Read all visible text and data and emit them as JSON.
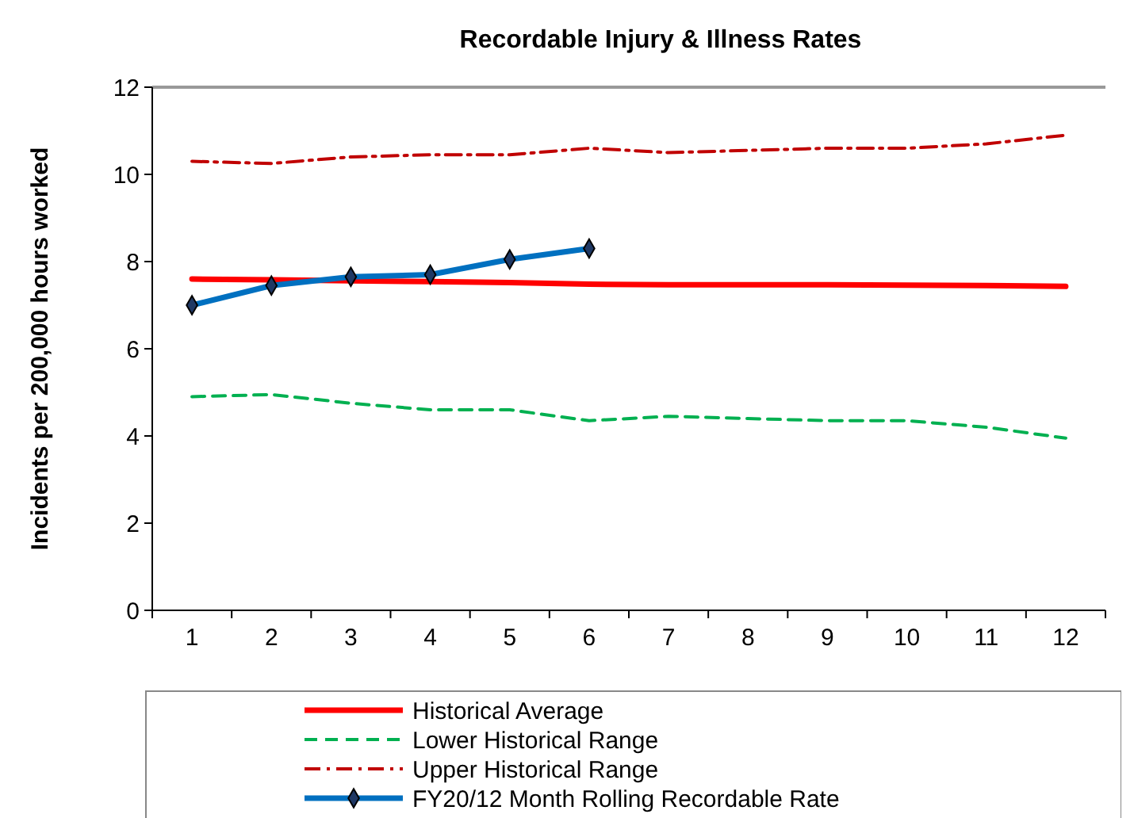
{
  "chart_data": {
    "type": "line",
    "title": "Recordable Injury & Illness Rates",
    "ylabel": "Incidents per 200,000 hours worked",
    "categories": [
      "1",
      "2",
      "3",
      "4",
      "5",
      "6",
      "7",
      "8",
      "9",
      "10",
      "11",
      "12"
    ],
    "ylim": [
      0,
      12
    ],
    "yticks": [
      0,
      2,
      4,
      6,
      8,
      10,
      12
    ],
    "grid": false,
    "legend": "bottom",
    "series": [
      {
        "name": "Historical Average",
        "color": "#ff0000",
        "line_style": "solid",
        "marker": "none",
        "values": [
          7.6,
          7.58,
          7.56,
          7.54,
          7.52,
          7.48,
          7.47,
          7.47,
          7.47,
          7.46,
          7.45,
          7.43
        ]
      },
      {
        "name": "Lower Historical Range",
        "color": "#00b050",
        "line_style": "dashed",
        "marker": "none",
        "values": [
          4.9,
          4.95,
          4.75,
          4.6,
          4.6,
          4.35,
          4.45,
          4.4,
          4.35,
          4.35,
          4.2,
          3.95
        ]
      },
      {
        "name": "Upper Historical Range",
        "color": "#c00000",
        "line_style": "dashdot",
        "marker": "none",
        "values": [
          10.3,
          10.25,
          10.4,
          10.45,
          10.45,
          10.6,
          10.5,
          10.55,
          10.6,
          10.6,
          10.7,
          10.9
        ]
      },
      {
        "name": "FY20/12 Month Rolling Recordable Rate",
        "color": "#0070c0",
        "line_style": "solid",
        "marker": "diamond",
        "values": [
          7.0,
          7.45,
          7.65,
          7.7,
          8.05,
          8.3,
          null,
          null,
          null,
          null,
          null,
          null
        ]
      }
    ]
  }
}
